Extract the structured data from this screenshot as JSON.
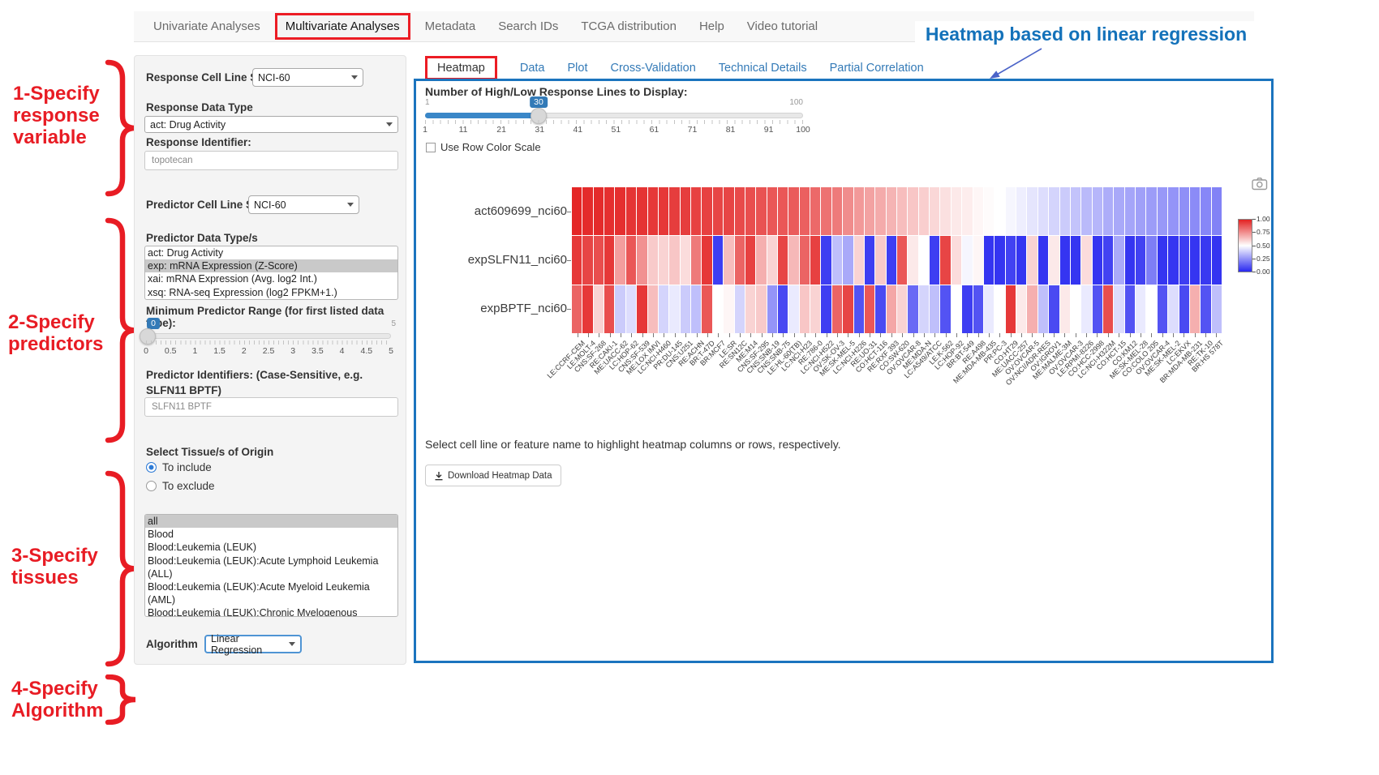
{
  "nav": {
    "items": [
      "Univariate Analyses",
      "Multivariate Analyses",
      "Metadata",
      "Search IDs",
      "TCGA distribution",
      "Help",
      "Video tutorial"
    ],
    "active": "Multivariate Analyses"
  },
  "annotations": {
    "banner": "Heatmap based on linear regression",
    "steps": [
      {
        "lines": [
          "1-Specify",
          "response",
          "variable"
        ]
      },
      {
        "lines": [
          "2-Specify",
          "predictors"
        ]
      },
      {
        "lines": [
          "3-Specify",
          "tissues"
        ]
      },
      {
        "lines": [
          "4-Specify",
          "Algorithm"
        ]
      }
    ],
    "accent_red": "#e81c24",
    "banner_blue": "#1472ba"
  },
  "form": {
    "response_cell_line_set": {
      "label": "Response Cell Line Set",
      "value": "NCI-60"
    },
    "response_data_type": {
      "label": "Response Data Type",
      "value": "act: Drug Activity"
    },
    "response_identifier": {
      "label": "Response Identifier:",
      "value": "topotecan"
    },
    "predictor_cell_line_set": {
      "label": "Predictor Cell Line Set",
      "value": "NCI-60"
    },
    "predictor_data_types": {
      "label": "Predictor Data Type/s",
      "options": [
        "act: Drug Activity",
        "exp: mRNA Expression (Z-Score)",
        "xai: mRNA Expression (Avg. log2 Int.)",
        "xsq: RNA-seq Expression (log2 FPKM+1.)"
      ],
      "selected": "exp: mRNA Expression (Z-Score)"
    },
    "min_predictor_range": {
      "label": "Minimum Predictor Range (for first listed data type):",
      "value": "0",
      "max_label": "5",
      "ticks": [
        "0",
        "0.5",
        "1",
        "1.5",
        "2",
        "2.5",
        "3",
        "3.5",
        "4",
        "4.5",
        "5"
      ]
    },
    "predictor_identifiers": {
      "label": "Predictor Identifiers: (Case-Sensitive, e.g. SLFN11 BPTF)",
      "value": "SLFN11 BPTF"
    },
    "tissue": {
      "label": "Select Tissue/s of Origin",
      "radios": [
        {
          "label": "To include",
          "selected": true
        },
        {
          "label": "To exclude",
          "selected": false
        }
      ],
      "options": [
        "all",
        "Blood",
        "Blood:Leukemia (LEUK)",
        "Blood:Leukemia (LEUK):Acute Lymphoid Leukemia (ALL)",
        "Blood:Leukemia (LEUK):Acute Myeloid Leukemia (AML)",
        "Blood:Leukemia (LEUK):Chronic Myelogenous Leukemia (CML)"
      ],
      "selected": "all"
    },
    "algorithm": {
      "label": "Algorithm",
      "value": "Linear Regression"
    }
  },
  "main": {
    "tabs": [
      "Heatmap",
      "Data",
      "Plot",
      "Cross-Validation",
      "Technical Details",
      "Partial Correlation"
    ],
    "active_tab": "Heatmap",
    "lines_slider": {
      "label": "Number of High/Low Response Lines to Display:",
      "min_label": "1",
      "max_label": "100",
      "value": "30",
      "ticks": [
        "1",
        "11",
        "21",
        "31",
        "41",
        "51",
        "61",
        "71",
        "81",
        "91",
        "100"
      ]
    },
    "row_color_checkbox": {
      "label": "Use Row Color Scale",
      "checked": false
    },
    "note": "Select cell line or feature name to highlight heatmap columns or rows, respectively.",
    "download_button": "Download Heatmap Data"
  },
  "chart_data": {
    "type": "heatmap",
    "rows": [
      "act609699_nci60",
      "expSLFN11_nci60",
      "expBPTF_nci60"
    ],
    "columns": [
      "LE:CCRF-CEM",
      "LE:MOLT-4",
      "CNS:SF-268",
      "RE:CAKI-1",
      "ME:UACC-62",
      "LC:HOP-62",
      "CNS:SF-539",
      "ME:LOX IMVI",
      "LC:NCI-H460",
      "PR:DU-145",
      "CNS:U251",
      "RE:ACHN",
      "BR:T-47D",
      "BR:MCF7",
      "LE:SR",
      "RE:SN12C",
      "ME:M14",
      "CNS:SF-295",
      "CNS:SNB-19",
      "CNS:SNB-75",
      "LE:HL-60(TB)",
      "LC:NCI-H23",
      "RE:786-0",
      "LC:NCI-H522",
      "OV:SK-OV-3",
      "ME:SK-MEL-5",
      "LC:NCI-H226",
      "RE:UO-31",
      "CO:HCT-116",
      "RE:RXF 393",
      "CO:SW-620",
      "OV:OVCAR-8",
      "ME:MDA-N",
      "LC:A549/ATCC",
      "LE:K-562",
      "LC:HOP-92",
      "BR:BT-549",
      "RE:A498",
      "ME:MDA-MB-435",
      "PR:PC-3",
      "CO:HT29",
      "ME:UACC-257",
      "OV:OVCAR-5",
      "OV:NCI/ADR-RES",
      "OV:IGROV1",
      "ME:MALME-3M",
      "OV:OVCAR-3",
      "LE:RPMI-8226",
      "CO:HCC-2998",
      "LC:NCI-H322M",
      "CO:HCT-15",
      "CO:KM12",
      "ME:SK-MEL-28",
      "CO:COLO 205",
      "OV:OVCAR-4",
      "ME:SK-MEL-2",
      "LC:EKVX",
      "BR:MDA-MB-231",
      "RE:TK-10",
      "BR:HS 578T"
    ],
    "values": [
      [
        0.99,
        0.98,
        0.98,
        0.97,
        0.97,
        0.96,
        0.96,
        0.95,
        0.95,
        0.94,
        0.94,
        0.93,
        0.93,
        0.92,
        0.92,
        0.91,
        0.9,
        0.89,
        0.88,
        0.88,
        0.87,
        0.86,
        0.84,
        0.82,
        0.8,
        0.76,
        0.73,
        0.71,
        0.69,
        0.67,
        0.65,
        0.63,
        0.61,
        0.59,
        0.57,
        0.55,
        0.54,
        0.52,
        0.51,
        0.5,
        0.48,
        0.46,
        0.44,
        0.42,
        0.4,
        0.38,
        0.36,
        0.34,
        0.33,
        0.31,
        0.3,
        0.29,
        0.28,
        0.27,
        0.26,
        0.25,
        0.24,
        0.23,
        0.22,
        0.21
      ],
      [
        0.95,
        0.92,
        0.9,
        0.95,
        0.72,
        0.88,
        0.75,
        0.62,
        0.6,
        0.63,
        0.58,
        0.8,
        0.95,
        0.05,
        0.65,
        0.85,
        0.93,
        0.68,
        0.6,
        0.92,
        0.66,
        0.85,
        0.93,
        0.05,
        0.35,
        0.3,
        0.6,
        0.05,
        0.62,
        0.05,
        0.88,
        0.55,
        0.5,
        0.05,
        0.92,
        0.58,
        0.48,
        0.52,
        0.03,
        0.03,
        0.06,
        0.03,
        0.6,
        0.03,
        0.55,
        0.03,
        0.03,
        0.58,
        0.03,
        0.06,
        0.3,
        0.03,
        0.06,
        0.2,
        0.03,
        0.03,
        0.05,
        0.03,
        0.04,
        0.03
      ],
      [
        0.85,
        0.95,
        0.6,
        0.9,
        0.38,
        0.42,
        0.95,
        0.65,
        0.4,
        0.45,
        0.38,
        0.35,
        0.88,
        0.5,
        0.52,
        0.4,
        0.6,
        0.62,
        0.25,
        0.08,
        0.45,
        0.63,
        0.6,
        0.05,
        0.85,
        0.92,
        0.1,
        0.88,
        0.08,
        0.7,
        0.6,
        0.15,
        0.4,
        0.35,
        0.1,
        0.5,
        0.05,
        0.1,
        0.45,
        0.5,
        0.95,
        0.55,
        0.68,
        0.35,
        0.08,
        0.55,
        0.5,
        0.45,
        0.1,
        0.9,
        0.42,
        0.1,
        0.45,
        0.5,
        0.1,
        0.42,
        0.08,
        0.68,
        0.1,
        0.35
      ]
    ],
    "colorbar_ticks": [
      "1.00",
      "0.75",
      "0.50",
      "0.25",
      "0.00"
    ],
    "color_high": "#e32222",
    "color_mid": "#ffffff",
    "color_low": "#2828f0"
  }
}
